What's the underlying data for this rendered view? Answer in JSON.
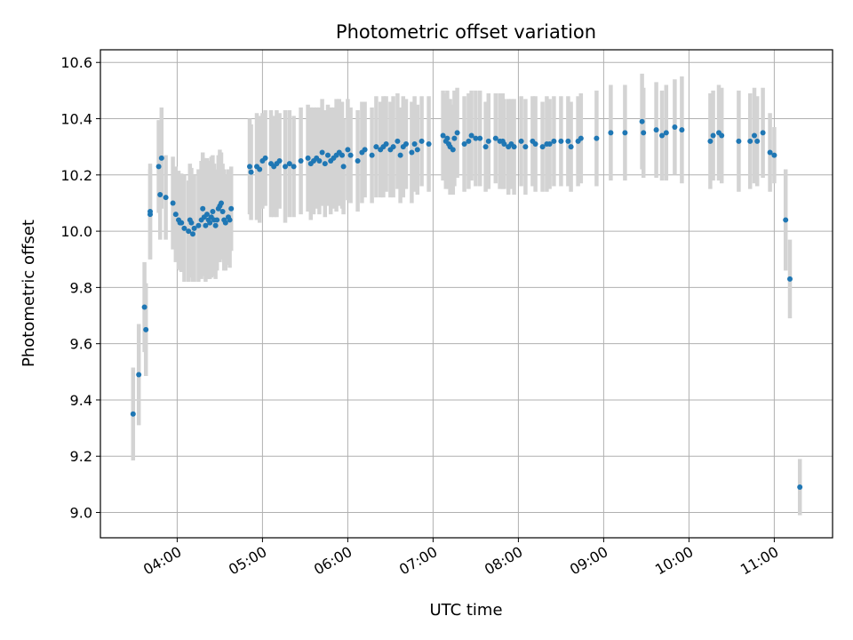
{
  "chart_data": {
    "type": "scatter",
    "title": "Photometric offset variation",
    "xlabel": "UTC time",
    "ylabel": "Photometric offset",
    "x_unit": "UTC time (HH:MM)",
    "xlim": [
      "03:06",
      "11:41"
    ],
    "ylim": [
      8.91,
      10.645
    ],
    "grid": true,
    "x_ticks": [
      "04:00",
      "05:00",
      "06:00",
      "07:00",
      "08:00",
      "09:00",
      "10:00",
      "11:00"
    ],
    "y_ticks": [
      "9.0",
      "9.2",
      "9.4",
      "9.6",
      "9.8",
      "10.0",
      "10.2",
      "10.4",
      "10.6"
    ],
    "colors": {
      "points": "#1f77b4",
      "errorbars": "#d3d3d3",
      "grid": "#b0b0b0"
    },
    "points": [
      {
        "t": "03:29",
        "y": 9.35,
        "err": 0.165
      },
      {
        "t": "03:33",
        "y": 9.49,
        "err": 0.18
      },
      {
        "t": "03:37",
        "y": 9.73,
        "err": 0.16
      },
      {
        "t": "03:38",
        "y": 9.65,
        "err": 0.165
      },
      {
        "t": "03:41",
        "y": 10.07,
        "err": 0.17
      },
      {
        "t": "03:41",
        "y": 10.06,
        "err": 0.16
      },
      {
        "t": "03:47",
        "y": 10.23,
        "err": 0.165
      },
      {
        "t": "03:49",
        "y": 10.26,
        "err": 0.18
      },
      {
        "t": "03:48",
        "y": 10.13,
        "err": 0.16
      },
      {
        "t": "03:52",
        "y": 10.12,
        "err": 0.15
      },
      {
        "t": "03:57",
        "y": 10.1,
        "err": 0.165
      },
      {
        "t": "03:59",
        "y": 10.06,
        "err": 0.17
      },
      {
        "t": "04:01",
        "y": 10.04,
        "err": 0.175
      },
      {
        "t": "04:02",
        "y": 10.03,
        "err": 0.17
      },
      {
        "t": "04:03",
        "y": 10.03,
        "err": 0.175
      },
      {
        "t": "04:05",
        "y": 10.01,
        "err": 0.19
      },
      {
        "t": "04:08",
        "y": 10.0,
        "err": 0.18
      },
      {
        "t": "04:09",
        "y": 10.04,
        "err": 0.2
      },
      {
        "t": "04:10",
        "y": 10.03,
        "err": 0.195
      },
      {
        "t": "04:11",
        "y": 9.99,
        "err": 0.17
      },
      {
        "t": "04:12",
        "y": 10.01,
        "err": 0.19
      },
      {
        "t": "04:15",
        "y": 10.02,
        "err": 0.2
      },
      {
        "t": "04:17",
        "y": 10.04,
        "err": 0.21
      },
      {
        "t": "04:18",
        "y": 10.08,
        "err": 0.2
      },
      {
        "t": "04:19",
        "y": 10.05,
        "err": 0.21
      },
      {
        "t": "04:20",
        "y": 10.02,
        "err": 0.2
      },
      {
        "t": "04:21",
        "y": 10.06,
        "err": 0.2
      },
      {
        "t": "04:22",
        "y": 10.04,
        "err": 0.21
      },
      {
        "t": "04:23",
        "y": 10.03,
        "err": 0.2
      },
      {
        "t": "04:24",
        "y": 10.05,
        "err": 0.215
      },
      {
        "t": "04:25",
        "y": 10.07,
        "err": 0.2
      },
      {
        "t": "04:26",
        "y": 10.04,
        "err": 0.2
      },
      {
        "t": "04:27",
        "y": 10.02,
        "err": 0.19
      },
      {
        "t": "04:28",
        "y": 10.04,
        "err": 0.18
      },
      {
        "t": "04:29",
        "y": 10.08,
        "err": 0.19
      },
      {
        "t": "04:30",
        "y": 10.09,
        "err": 0.2
      },
      {
        "t": "04:31",
        "y": 10.1,
        "err": 0.18
      },
      {
        "t": "04:32",
        "y": 10.07,
        "err": 0.17
      },
      {
        "t": "04:33",
        "y": 10.04,
        "err": 0.18
      },
      {
        "t": "04:34",
        "y": 10.03,
        "err": 0.17
      },
      {
        "t": "04:36",
        "y": 10.05,
        "err": 0.17
      },
      {
        "t": "04:37",
        "y": 10.04,
        "err": 0.17
      },
      {
        "t": "04:38",
        "y": 10.08,
        "err": 0.15
      },
      {
        "t": "04:51",
        "y": 10.23,
        "err": 0.17
      },
      {
        "t": "04:52",
        "y": 10.21,
        "err": 0.17
      },
      {
        "t": "04:56",
        "y": 10.23,
        "err": 0.19
      },
      {
        "t": "04:58",
        "y": 10.22,
        "err": 0.19
      },
      {
        "t": "05:00",
        "y": 10.25,
        "err": 0.17
      },
      {
        "t": "05:02",
        "y": 10.26,
        "err": 0.17
      },
      {
        "t": "05:06",
        "y": 10.24,
        "err": 0.19
      },
      {
        "t": "05:08",
        "y": 10.23,
        "err": 0.18
      },
      {
        "t": "05:10",
        "y": 10.24,
        "err": 0.19
      },
      {
        "t": "05:12",
        "y": 10.25,
        "err": 0.17
      },
      {
        "t": "05:16",
        "y": 10.23,
        "err": 0.2
      },
      {
        "t": "05:19",
        "y": 10.24,
        "err": 0.19
      },
      {
        "t": "05:22",
        "y": 10.23,
        "err": 0.18
      },
      {
        "t": "05:27",
        "y": 10.25,
        "err": 0.19
      },
      {
        "t": "05:32",
        "y": 10.26,
        "err": 0.19
      },
      {
        "t": "05:34",
        "y": 10.24,
        "err": 0.2
      },
      {
        "t": "05:36",
        "y": 10.25,
        "err": 0.19
      },
      {
        "t": "05:38",
        "y": 10.26,
        "err": 0.18
      },
      {
        "t": "05:40",
        "y": 10.25,
        "err": 0.19
      },
      {
        "t": "05:42",
        "y": 10.28,
        "err": 0.19
      },
      {
        "t": "05:44",
        "y": 10.24,
        "err": 0.19
      },
      {
        "t": "05:46",
        "y": 10.27,
        "err": 0.18
      },
      {
        "t": "05:48",
        "y": 10.25,
        "err": 0.19
      },
      {
        "t": "05:50",
        "y": 10.26,
        "err": 0.18
      },
      {
        "t": "05:52",
        "y": 10.27,
        "err": 0.2
      },
      {
        "t": "05:54",
        "y": 10.28,
        "err": 0.19
      },
      {
        "t": "05:56",
        "y": 10.27,
        "err": 0.19
      },
      {
        "t": "05:57",
        "y": 10.23,
        "err": 0.17
      },
      {
        "t": "06:00",
        "y": 10.29,
        "err": 0.18
      },
      {
        "t": "06:02",
        "y": 10.27,
        "err": 0.17
      },
      {
        "t": "06:07",
        "y": 10.25,
        "err": 0.18
      },
      {
        "t": "06:10",
        "y": 10.28,
        "err": 0.18
      },
      {
        "t": "06:12",
        "y": 10.29,
        "err": 0.17
      },
      {
        "t": "06:17",
        "y": 10.27,
        "err": 0.17
      },
      {
        "t": "06:20",
        "y": 10.3,
        "err": 0.18
      },
      {
        "t": "06:23",
        "y": 10.29,
        "err": 0.17
      },
      {
        "t": "06:25",
        "y": 10.3,
        "err": 0.18
      },
      {
        "t": "06:27",
        "y": 10.31,
        "err": 0.17
      },
      {
        "t": "06:30",
        "y": 10.29,
        "err": 0.17
      },
      {
        "t": "06:32",
        "y": 10.3,
        "err": 0.18
      },
      {
        "t": "06:35",
        "y": 10.32,
        "err": 0.17
      },
      {
        "t": "06:37",
        "y": 10.27,
        "err": 0.17
      },
      {
        "t": "06:39",
        "y": 10.3,
        "err": 0.18
      },
      {
        "t": "06:41",
        "y": 10.31,
        "err": 0.16
      },
      {
        "t": "06:45",
        "y": 10.28,
        "err": 0.18
      },
      {
        "t": "06:47",
        "y": 10.31,
        "err": 0.17
      },
      {
        "t": "06:49",
        "y": 10.29,
        "err": 0.16
      },
      {
        "t": "06:52",
        "y": 10.32,
        "err": 0.16
      },
      {
        "t": "06:57",
        "y": 10.31,
        "err": 0.17
      },
      {
        "t": "07:07",
        "y": 10.34,
        "err": 0.16
      },
      {
        "t": "07:09",
        "y": 10.32,
        "err": 0.17
      },
      {
        "t": "07:10",
        "y": 10.33,
        "err": 0.17
      },
      {
        "t": "07:11",
        "y": 10.31,
        "err": 0.16
      },
      {
        "t": "07:12",
        "y": 10.3,
        "err": 0.17
      },
      {
        "t": "07:14",
        "y": 10.29,
        "err": 0.16
      },
      {
        "t": "07:15",
        "y": 10.33,
        "err": 0.17
      },
      {
        "t": "07:17",
        "y": 10.35,
        "err": 0.16
      },
      {
        "t": "07:22",
        "y": 10.31,
        "err": 0.17
      },
      {
        "t": "07:25",
        "y": 10.32,
        "err": 0.17
      },
      {
        "t": "07:27",
        "y": 10.34,
        "err": 0.16
      },
      {
        "t": "07:30",
        "y": 10.33,
        "err": 0.17
      },
      {
        "t": "07:33",
        "y": 10.33,
        "err": 0.17
      },
      {
        "t": "07:37",
        "y": 10.3,
        "err": 0.16
      },
      {
        "t": "07:39",
        "y": 10.32,
        "err": 0.17
      },
      {
        "t": "07:44",
        "y": 10.33,
        "err": 0.16
      },
      {
        "t": "07:47",
        "y": 10.32,
        "err": 0.17
      },
      {
        "t": "07:49",
        "y": 10.32,
        "err": 0.17
      },
      {
        "t": "07:50",
        "y": 10.31,
        "err": 0.16
      },
      {
        "t": "07:53",
        "y": 10.3,
        "err": 0.17
      },
      {
        "t": "07:55",
        "y": 10.31,
        "err": 0.16
      },
      {
        "t": "07:57",
        "y": 10.3,
        "err": 0.17
      },
      {
        "t": "08:02",
        "y": 10.32,
        "err": 0.16
      },
      {
        "t": "08:05",
        "y": 10.3,
        "err": 0.17
      },
      {
        "t": "08:10",
        "y": 10.32,
        "err": 0.16
      },
      {
        "t": "08:12",
        "y": 10.31,
        "err": 0.17
      },
      {
        "t": "08:17",
        "y": 10.3,
        "err": 0.16
      },
      {
        "t": "08:20",
        "y": 10.31,
        "err": 0.17
      },
      {
        "t": "08:22",
        "y": 10.31,
        "err": 0.16
      },
      {
        "t": "08:25",
        "y": 10.32,
        "err": 0.16
      },
      {
        "t": "08:30",
        "y": 10.32,
        "err": 0.16
      },
      {
        "t": "08:35",
        "y": 10.32,
        "err": 0.16
      },
      {
        "t": "08:37",
        "y": 10.3,
        "err": 0.16
      },
      {
        "t": "08:42",
        "y": 10.32,
        "err": 0.16
      },
      {
        "t": "08:44",
        "y": 10.33,
        "err": 0.16
      },
      {
        "t": "08:55",
        "y": 10.33,
        "err": 0.17
      },
      {
        "t": "09:05",
        "y": 10.35,
        "err": 0.17
      },
      {
        "t": "09:15",
        "y": 10.35,
        "err": 0.17
      },
      {
        "t": "09:27",
        "y": 10.39,
        "err": 0.17
      },
      {
        "t": "09:28",
        "y": 10.35,
        "err": 0.16
      },
      {
        "t": "09:37",
        "y": 10.36,
        "err": 0.17
      },
      {
        "t": "09:41",
        "y": 10.34,
        "err": 0.16
      },
      {
        "t": "09:44",
        "y": 10.35,
        "err": 0.17
      },
      {
        "t": "09:50",
        "y": 10.37,
        "err": 0.17
      },
      {
        "t": "09:55",
        "y": 10.36,
        "err": 0.19
      },
      {
        "t": "10:15",
        "y": 10.32,
        "err": 0.17
      },
      {
        "t": "10:17",
        "y": 10.34,
        "err": 0.16
      },
      {
        "t": "10:21",
        "y": 10.35,
        "err": 0.17
      },
      {
        "t": "10:23",
        "y": 10.34,
        "err": 0.17
      },
      {
        "t": "10:35",
        "y": 10.32,
        "err": 0.18
      },
      {
        "t": "10:43",
        "y": 10.32,
        "err": 0.17
      },
      {
        "t": "10:46",
        "y": 10.34,
        "err": 0.17
      },
      {
        "t": "10:48",
        "y": 10.32,
        "err": 0.16
      },
      {
        "t": "10:52",
        "y": 10.35,
        "err": 0.16
      },
      {
        "t": "10:57",
        "y": 10.28,
        "err": 0.14
      },
      {
        "t": "11:00",
        "y": 10.27,
        "err": 0.1
      },
      {
        "t": "11:08",
        "y": 10.04,
        "err": 0.18
      },
      {
        "t": "11:11",
        "y": 9.83,
        "err": 0.14
      },
      {
        "t": "11:18",
        "y": 9.09,
        "err": 0.1
      }
    ]
  }
}
